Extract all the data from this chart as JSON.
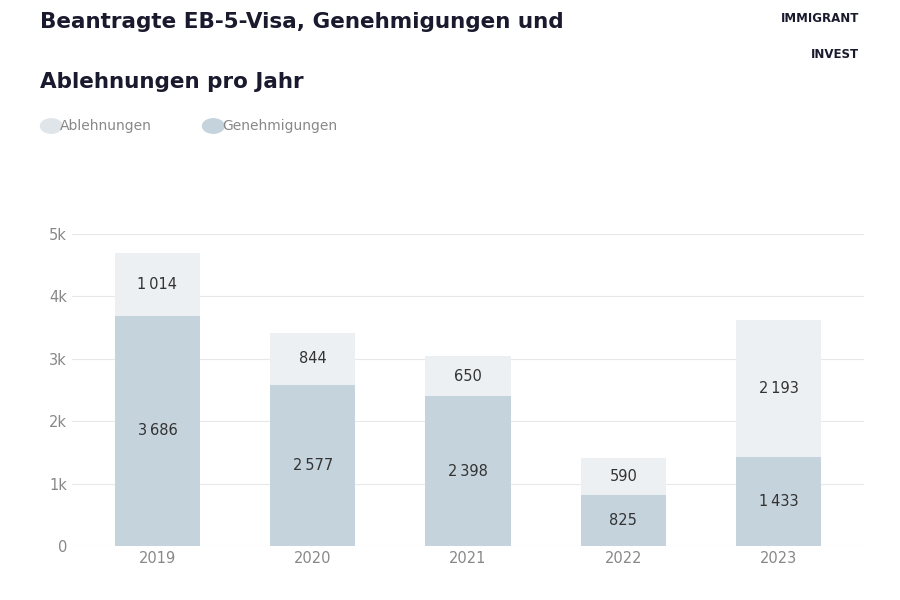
{
  "title_line1": "Beantragte EB-5-Visa, Genehmigungen und",
  "title_line2": "Ablehnungen pro Jahr",
  "years": [
    "2019",
    "2020",
    "2021",
    "2022",
    "2023"
  ],
  "approvals": [
    3686,
    2577,
    2398,
    825,
    1433
  ],
  "denials": [
    1014,
    844,
    650,
    590,
    2193
  ],
  "approval_color": "#c5d3dc",
  "denial_color": "#edf0f3",
  "legend_approval_color": "#b8cad4",
  "legend_denial_color": "#e0e5ea",
  "legend_approval": "Genehmigungen",
  "legend_denial": "Ablehnungen",
  "ylim": [
    0,
    5000
  ],
  "yticks": [
    0,
    1000,
    2000,
    3000,
    4000,
    5000
  ],
  "ytick_labels": [
    "0",
    "1k",
    "2k",
    "3k",
    "4k",
    "5k"
  ],
  "background_color": "#ffffff",
  "text_color": "#1a1a2e",
  "label_color": "#333333",
  "tick_color": "#888888",
  "grid_color": "#e8e8e8",
  "bar_width": 0.55,
  "logo_text_line1": "IMMIGRANT",
  "logo_text_line2": "INVEST"
}
